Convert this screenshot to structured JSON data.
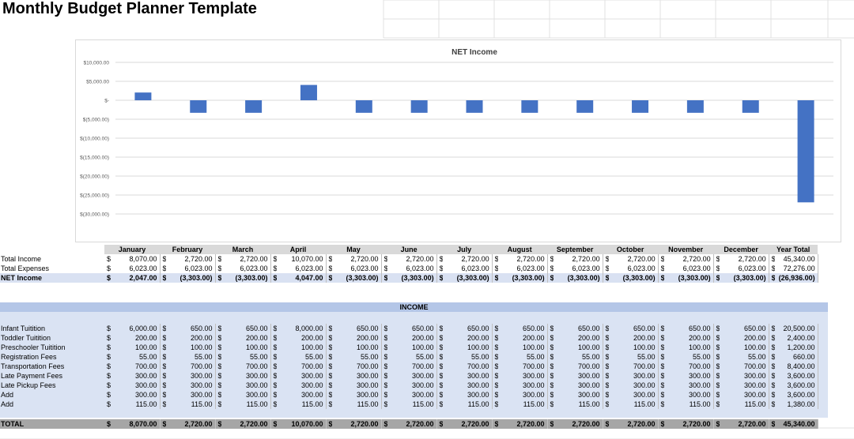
{
  "page_title": "Monthly Budget Planner Template",
  "chart_data": {
    "type": "bar",
    "title": "NET Income",
    "categories": [
      "January",
      "February",
      "March",
      "April",
      "May",
      "June",
      "July",
      "August",
      "September",
      "October",
      "November",
      "December",
      "Year Total"
    ],
    "values": [
      2047,
      -3303,
      -3303,
      4047,
      -3303,
      -3303,
      -3303,
      -3303,
      -3303,
      -3303,
      -3303,
      -3303,
      -26936
    ],
    "yticks": [
      10000,
      5000,
      0,
      -5000,
      -10000,
      -15000,
      -20000,
      -25000,
      -30000
    ],
    "ytick_labels": [
      "$10,000.00",
      "$5,000.00",
      "$-",
      "$(5,000.00)",
      "$(10,000.00)",
      "$(15,000.00)",
      "$(20,000.00)",
      "$(25,000.00)",
      "$(30,000.00)"
    ],
    "ylim": [
      -30000,
      10000
    ],
    "grid": true,
    "bar_color": "#4472c4"
  },
  "summary": {
    "headers": [
      "January",
      "February",
      "March",
      "April",
      "May",
      "June",
      "July",
      "August",
      "September",
      "October",
      "November",
      "December",
      "Year Total"
    ],
    "currency": "$",
    "rows": [
      {
        "label": "Total Income",
        "values": [
          "8,070.00",
          "2,720.00",
          "2,720.00",
          "10,070.00",
          "2,720.00",
          "2,720.00",
          "2,720.00",
          "2,720.00",
          "2,720.00",
          "2,720.00",
          "2,720.00",
          "2,720.00",
          "45,340.00"
        ]
      },
      {
        "label": "Total Expenses",
        "values": [
          "6,023.00",
          "6,023.00",
          "6,023.00",
          "6,023.00",
          "6,023.00",
          "6,023.00",
          "6,023.00",
          "6,023.00",
          "6,023.00",
          "6,023.00",
          "6,023.00",
          "6,023.00",
          "72,276.00"
        ]
      },
      {
        "label": "NET Income",
        "values": [
          "2,047.00",
          "(3,303.00)",
          "(3,303.00)",
          "4,047.00",
          "(3,303.00)",
          "(3,303.00)",
          "(3,303.00)",
          "(3,303.00)",
          "(3,303.00)",
          "(3,303.00)",
          "(3,303.00)",
          "(3,303.00)",
          "(26,936.00)"
        ]
      }
    ]
  },
  "income": {
    "section_title": "INCOME",
    "currency": "$",
    "rows": [
      {
        "label": "Infant Tuitition",
        "values": [
          "6,000.00",
          "650.00",
          "650.00",
          "8,000.00",
          "650.00",
          "650.00",
          "650.00",
          "650.00",
          "650.00",
          "650.00",
          "650.00",
          "650.00",
          "20,500.00"
        ]
      },
      {
        "label": "Toddler Tuitition",
        "values": [
          "200.00",
          "200.00",
          "200.00",
          "200.00",
          "200.00",
          "200.00",
          "200.00",
          "200.00",
          "200.00",
          "200.00",
          "200.00",
          "200.00",
          "2,400.00"
        ]
      },
      {
        "label": "Preschooler Tuitition",
        "values": [
          "100.00",
          "100.00",
          "100.00",
          "100.00",
          "100.00",
          "100.00",
          "100.00",
          "100.00",
          "100.00",
          "100.00",
          "100.00",
          "100.00",
          "1,200.00"
        ]
      },
      {
        "label": "Registration Fees",
        "values": [
          "55.00",
          "55.00",
          "55.00",
          "55.00",
          "55.00",
          "55.00",
          "55.00",
          "55.00",
          "55.00",
          "55.00",
          "55.00",
          "55.00",
          "660.00"
        ]
      },
      {
        "label": "Transportation Fees",
        "values": [
          "700.00",
          "700.00",
          "700.00",
          "700.00",
          "700.00",
          "700.00",
          "700.00",
          "700.00",
          "700.00",
          "700.00",
          "700.00",
          "700.00",
          "8,400.00"
        ]
      },
      {
        "label": "Late Payment Fees",
        "values": [
          "300.00",
          "300.00",
          "300.00",
          "300.00",
          "300.00",
          "300.00",
          "300.00",
          "300.00",
          "300.00",
          "300.00",
          "300.00",
          "300.00",
          "3,600.00"
        ]
      },
      {
        "label": "Late Pickup Fees",
        "values": [
          "300.00",
          "300.00",
          "300.00",
          "300.00",
          "300.00",
          "300.00",
          "300.00",
          "300.00",
          "300.00",
          "300.00",
          "300.00",
          "300.00",
          "3,600.00"
        ]
      },
      {
        "label": "Add",
        "values": [
          "300.00",
          "300.00",
          "300.00",
          "300.00",
          "300.00",
          "300.00",
          "300.00",
          "300.00",
          "300.00",
          "300.00",
          "300.00",
          "300.00",
          "3,600.00"
        ]
      },
      {
        "label": "Add",
        "values": [
          "115.00",
          "115.00",
          "115.00",
          "115.00",
          "115.00",
          "115.00",
          "115.00",
          "115.00",
          "115.00",
          "115.00",
          "115.00",
          "115.00",
          "1,380.00"
        ]
      }
    ],
    "total": {
      "label": "TOTAL",
      "values": [
        "8,070.00",
        "2,720.00",
        "2,720.00",
        "10,070.00",
        "2,720.00",
        "2,720.00",
        "2,720.00",
        "2,720.00",
        "2,720.00",
        "2,720.00",
        "2,720.00",
        "2,720.00",
        "45,340.00"
      ]
    }
  }
}
